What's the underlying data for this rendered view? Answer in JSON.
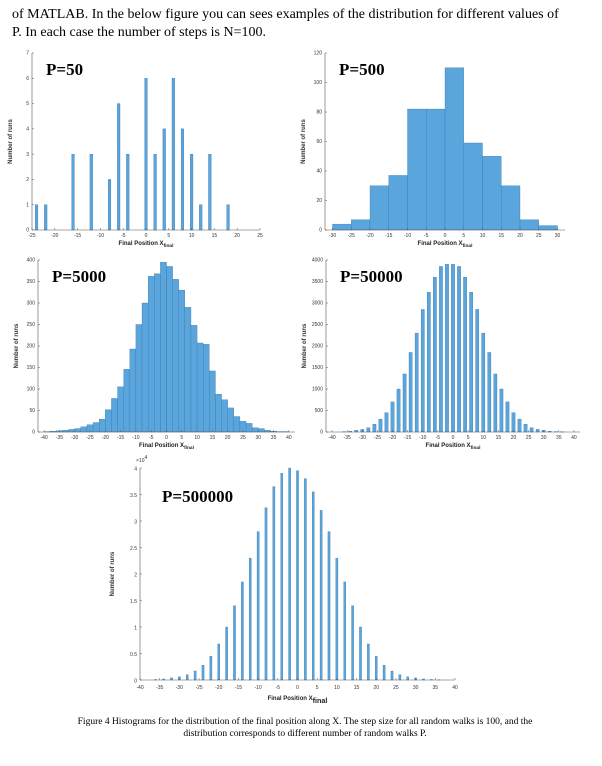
{
  "paragraph": {
    "line1": "of MATLAB. In the below figure you can sees examples of the distribution for different values of",
    "line2": "P. In each case the number of steps is N=100."
  },
  "caption": {
    "line1": "Figure 4 Histograms for the distribution of the final position along X. The step size for all random walks is 100, and the",
    "line2": "distribution corresponds to different number of random walks P."
  },
  "colors": {
    "bar": "#5aa5dc",
    "bar_edge": "#2e6da4"
  },
  "chart_data": [
    {
      "type": "bar",
      "label": "P=50",
      "xlabel": "Final Position X",
      "xlabel_sub": "final",
      "ylabel": "Number of runs",
      "xlim": [
        -25,
        25
      ],
      "ylim": [
        0,
        7
      ],
      "xticks": [
        -25,
        -20,
        -15,
        -10,
        -5,
        0,
        5,
        10,
        15,
        20,
        25
      ],
      "yticks": [
        0,
        1,
        2,
        3,
        4,
        5,
        6,
        7
      ],
      "bar_width": 0.6,
      "x": [
        -24,
        -22,
        -16,
        -12,
        -8,
        -6,
        -4,
        0,
        2,
        4,
        6,
        8,
        10,
        12,
        14,
        18
      ],
      "values": [
        1,
        1,
        3,
        3,
        2,
        5,
        3,
        6,
        3,
        4,
        6,
        4,
        3,
        1,
        3,
        1
      ]
    },
    {
      "type": "bar",
      "label": "P=500",
      "xlabel": "Final Position X",
      "xlabel_sub": "final",
      "ylabel": "Number of runs",
      "xlim": [
        -32,
        32
      ],
      "ylim": [
        0,
        120
      ],
      "xticks": [
        -30,
        -25,
        -20,
        -15,
        -10,
        -5,
        0,
        5,
        10,
        15,
        20,
        25,
        30
      ],
      "yticks": [
        0,
        20,
        40,
        60,
        80,
        100,
        120
      ],
      "bar_width": 5,
      "x": [
        -27.5,
        -22.5,
        -17.5,
        -12.5,
        -7.5,
        -2.5,
        2.5,
        7.5,
        12.5,
        17.5,
        22.5,
        27.5
      ],
      "values": [
        4,
        7,
        30,
        37,
        82,
        82,
        110,
        59,
        50,
        30,
        7,
        3
      ]
    },
    {
      "type": "bar",
      "label": "P=5000",
      "xlabel": "Final Position X",
      "xlabel_sub": "final",
      "ylabel": "Number of runs",
      "xlim": [
        -42,
        42
      ],
      "ylim": [
        0,
        400
      ],
      "xticks": [
        -40,
        -35,
        -30,
        -25,
        -20,
        -15,
        -10,
        -5,
        0,
        5,
        10,
        15,
        20,
        25,
        30,
        35,
        40
      ],
      "yticks": [
        0,
        50,
        100,
        150,
        200,
        250,
        300,
        350,
        400
      ],
      "bar_width": 2,
      "x": [
        -39,
        -37,
        -35,
        -33,
        -31,
        -29,
        -27,
        -25,
        -23,
        -21,
        -19,
        -17,
        -15,
        -13,
        -11,
        -9,
        -7,
        -5,
        -3,
        -1,
        1,
        3,
        5,
        7,
        9,
        11,
        13,
        15,
        17,
        19,
        21,
        23,
        25,
        27,
        29,
        31,
        33,
        35,
        37,
        39
      ],
      "values": [
        1,
        2,
        3,
        4,
        6,
        8,
        12,
        17,
        22,
        30,
        52,
        78,
        105,
        146,
        193,
        250,
        300,
        362,
        368,
        395,
        385,
        355,
        330,
        290,
        248,
        207,
        204,
        142,
        88,
        75,
        56,
        36,
        25,
        20,
        10,
        8,
        4,
        2,
        1,
        1
      ]
    },
    {
      "type": "bar",
      "label": "P=50000",
      "xlabel": "Final Position X",
      "xlabel_sub": "final",
      "ylabel": "Number of runs",
      "xlim": [
        -42,
        42
      ],
      "ylim": [
        0,
        4000
      ],
      "xticks": [
        -40,
        -35,
        -30,
        -25,
        -20,
        -15,
        -10,
        -5,
        0,
        5,
        10,
        15,
        20,
        25,
        30,
        35,
        40
      ],
      "yticks": [
        0,
        500,
        1000,
        1500,
        2000,
        2500,
        3000,
        3500,
        4000
      ],
      "bar_width": 1.1,
      "x": [
        -36,
        -34,
        -32,
        -30,
        -28,
        -26,
        -24,
        -22,
        -20,
        -18,
        -16,
        -14,
        -12,
        -10,
        -8,
        -6,
        -4,
        -2,
        0,
        2,
        4,
        6,
        8,
        10,
        12,
        14,
        16,
        18,
        20,
        22,
        24,
        26,
        28,
        30,
        32,
        34,
        36
      ],
      "values": [
        10,
        20,
        40,
        60,
        100,
        180,
        300,
        450,
        700,
        1000,
        1350,
        1850,
        2300,
        2850,
        3250,
        3600,
        3850,
        3900,
        3900,
        3850,
        3600,
        3250,
        2850,
        2300,
        1850,
        1350,
        1000,
        700,
        450,
        300,
        180,
        100,
        60,
        40,
        20,
        10,
        5
      ]
    },
    {
      "type": "bar",
      "label": "P=500000",
      "xlabel": "Final Position X",
      "xlabel_sub": "final",
      "ylabel": "Number of runs",
      "y_multiplier": "×10",
      "y_multiplier_exp": "4",
      "xlim": [
        -40,
        40
      ],
      "ylim": [
        0,
        4
      ],
      "xticks": [
        -40,
        -35,
        -30,
        -25,
        -20,
        -15,
        -10,
        -5,
        0,
        5,
        10,
        15,
        20,
        25,
        30,
        35,
        40
      ],
      "yticks": [
        0,
        0.5,
        1,
        1.5,
        2,
        2.5,
        3,
        3.5,
        4
      ],
      "bar_width": 0.55,
      "x": [
        -36,
        -34,
        -32,
        -30,
        -28,
        -26,
        -24,
        -22,
        -20,
        -18,
        -16,
        -14,
        -12,
        -10,
        -8,
        -6,
        -4,
        -2,
        0,
        2,
        4,
        6,
        8,
        10,
        12,
        14,
        16,
        18,
        20,
        22,
        24,
        26,
        28,
        30,
        32,
        34,
        36
      ],
      "values": [
        0.01,
        0.02,
        0.04,
        0.06,
        0.1,
        0.17,
        0.28,
        0.45,
        0.68,
        1.0,
        1.4,
        1.85,
        2.3,
        2.8,
        3.25,
        3.65,
        3.9,
        4.0,
        3.95,
        3.8,
        3.55,
        3.2,
        2.8,
        2.3,
        1.85,
        1.4,
        1.0,
        0.68,
        0.45,
        0.28,
        0.17,
        0.1,
        0.06,
        0.04,
        0.02,
        0.01,
        0.005
      ]
    }
  ]
}
